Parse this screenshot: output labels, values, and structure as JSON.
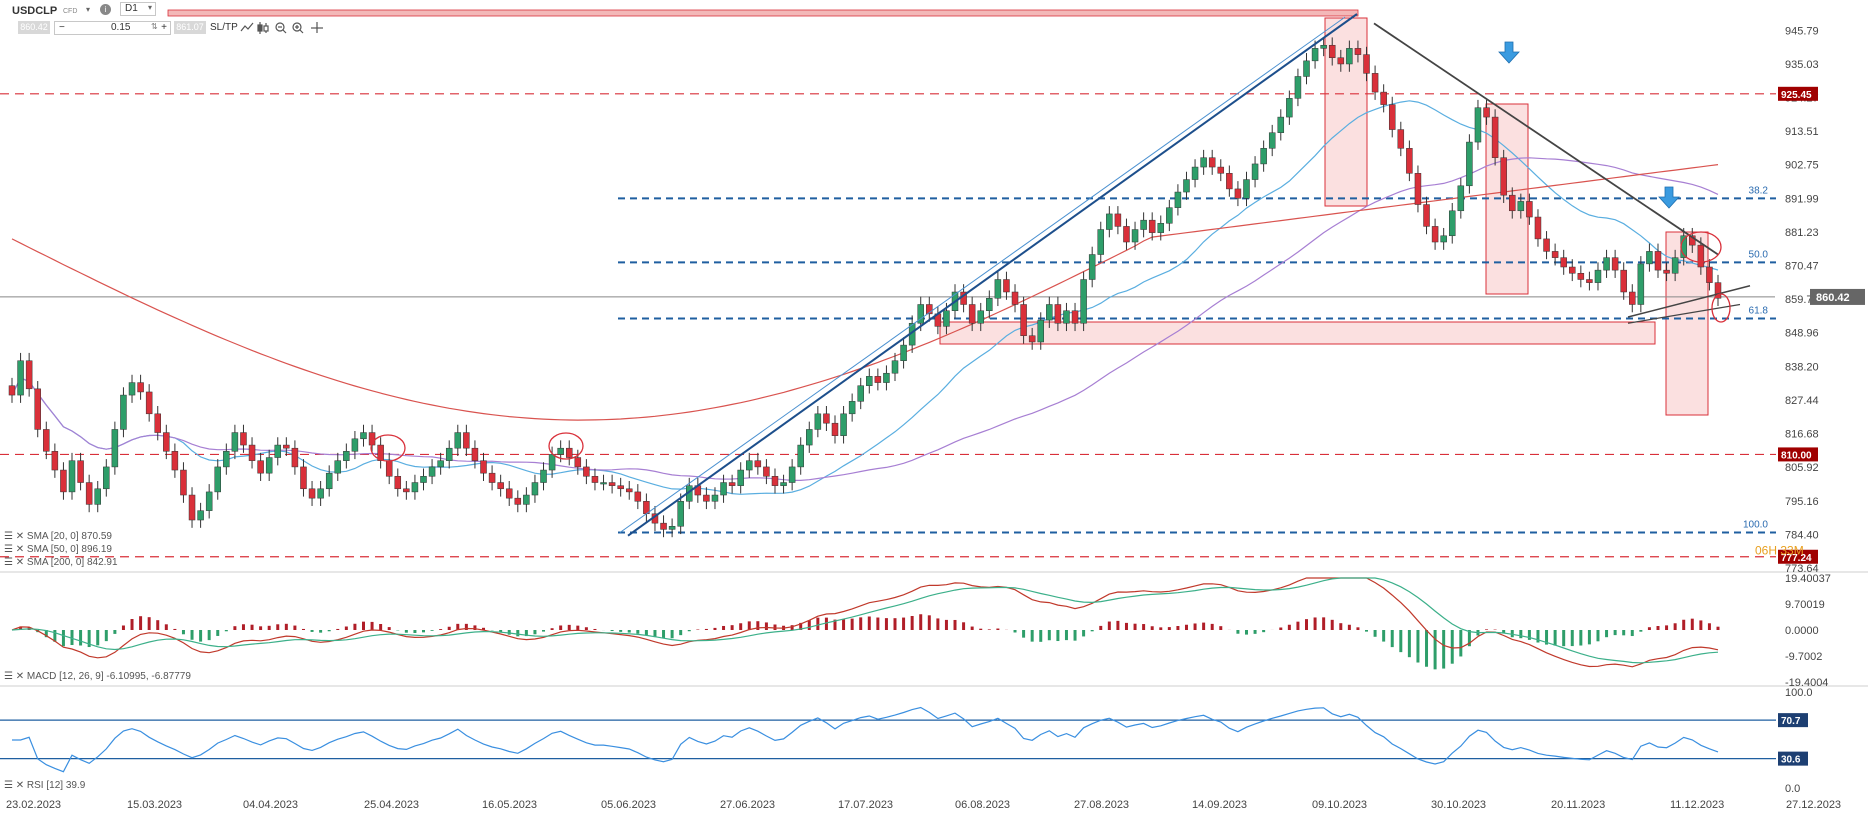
{
  "toolbar": {
    "symbol": "USDCLP",
    "instrument_type": "CFD",
    "timeframe": "D1",
    "lot_value": "0.15",
    "sell_price": "860.42",
    "buy_price": "861.07",
    "sltp_label": "SL/TP",
    "minus": "−",
    "plus": "+"
  },
  "colors": {
    "up": "#2e9e6a",
    "down": "#d9303a",
    "sma20": "#5aaee0",
    "sma50": "#a77fd3",
    "sma200": "#d9534f",
    "fib": "#1f5fa0",
    "trend": "#1d4f8c",
    "resistance": "#d9303a"
  },
  "chart_data": [
    {
      "type": "candlestick",
      "title": "USDCLP",
      "x_labels": [
        "23.02.2023",
        "15.03.2023",
        "04.04.2023",
        "25.04.2023",
        "16.05.2023",
        "05.06.2023",
        "27.06.2023",
        "17.07.2023",
        "06.08.2023",
        "27.08.2023",
        "14.09.2023",
        "09.10.2023",
        "30.10.2023",
        "20.11.2023",
        "11.12.2023",
        "27.12.2023"
      ],
      "y_ticks": [
        945.79,
        935.03,
        924.27,
        913.51,
        902.75,
        891.99,
        881.23,
        870.47,
        859.71,
        848.96,
        838.2,
        827.44,
        816.68,
        805.92,
        795.16,
        784.4,
        773.64
      ],
      "ylim": [
        773.64,
        951.0
      ],
      "price_labels": [
        {
          "value": 925.45,
          "text": "925.45",
          "color": "#a00000"
        },
        {
          "value": 860.42,
          "text": "860.42",
          "color": "#666666"
        },
        {
          "value": 810.0,
          "text": "810.00",
          "color": "#a00000"
        },
        {
          "value": 777.24,
          "text": "777.24",
          "color": "#a00000"
        }
      ],
      "fib_levels": [
        {
          "value": 891.99,
          "label": "38.2"
        },
        {
          "value": 871.5,
          "label": "50.0"
        },
        {
          "value": 853.5,
          "label": "61.8"
        },
        {
          "value": 785.0,
          "label": "100.0"
        }
      ],
      "current_price": 860.42,
      "annotations": [
        "06H 33M"
      ],
      "series": [
        {
          "name": "SMA [20, 0] 870.59",
          "last": 870.59
        },
        {
          "name": "SMA [50, 0] 896.19",
          "last": 896.19
        },
        {
          "name": "SMA [200, 0] 842.91",
          "last": 842.91
        }
      ],
      "closes": [
        829,
        840,
        831,
        818,
        811,
        805,
        798,
        808,
        801,
        794,
        799,
        806,
        818,
        829,
        833,
        830,
        823,
        817,
        811,
        805,
        797,
        789,
        792,
        798,
        806,
        811,
        817,
        813,
        808,
        804,
        809,
        813,
        812,
        806,
        799,
        796,
        799,
        804,
        808,
        811,
        815,
        817,
        813,
        808,
        803,
        799,
        798,
        801,
        803,
        806,
        808,
        812,
        817,
        812,
        808,
        804,
        801,
        799,
        796,
        794,
        797,
        801,
        805,
        810,
        812,
        809,
        806,
        803,
        801,
        801,
        800,
        799,
        798,
        795,
        791,
        788,
        786,
        787,
        795,
        800,
        797,
        795,
        797,
        801,
        800,
        805,
        808,
        806,
        803,
        800,
        801,
        806,
        813,
        818,
        823,
        820,
        816,
        823,
        827,
        832,
        835,
        833,
        836,
        840,
        845,
        852,
        858,
        855,
        851,
        856,
        862,
        858,
        852,
        856,
        860,
        866,
        862,
        858,
        848,
        846,
        853,
        858,
        852,
        856,
        852,
        866,
        874,
        882,
        887,
        883,
        878,
        882,
        885,
        881,
        884,
        889,
        894,
        898,
        902,
        905,
        902,
        900,
        895,
        892,
        898,
        903,
        908,
        913,
        918,
        924,
        931,
        936,
        940,
        941,
        937,
        935,
        940,
        938,
        932,
        926,
        922,
        914,
        908,
        900,
        890,
        883,
        878,
        880,
        888,
        896,
        910,
        921,
        918,
        905,
        893,
        888,
        891,
        886,
        879,
        875,
        873,
        870,
        868,
        866,
        865,
        869,
        873,
        869,
        862,
        858,
        871,
        875,
        869,
        868,
        873,
        880,
        877,
        870,
        865,
        860
      ],
      "last_candle_down": true
    },
    {
      "type": "bar",
      "title": "MACD [12, 26, 9] -6.10995, -6.87779",
      "y_ticks": [
        19.40037,
        9.70019,
        0.0,
        -9.7002,
        -19.4004
      ],
      "ylim": [
        -19.4004,
        19.40037
      ],
      "series": [
        {
          "name": "MACD",
          "last": -6.10995
        },
        {
          "name": "Signal",
          "last": -6.87779
        }
      ]
    },
    {
      "type": "line",
      "title": "RSI [12] 39.9",
      "y_ticks": [
        100.0,
        70.0,
        30.0,
        0.0
      ],
      "ylim": [
        0,
        100
      ],
      "levels": [
        {
          "value": 70.7,
          "label": "70.7"
        },
        {
          "value": 30.6,
          "label": "30.6"
        }
      ],
      "series": [
        {
          "name": "RSI",
          "last": 39.9
        }
      ]
    }
  ]
}
